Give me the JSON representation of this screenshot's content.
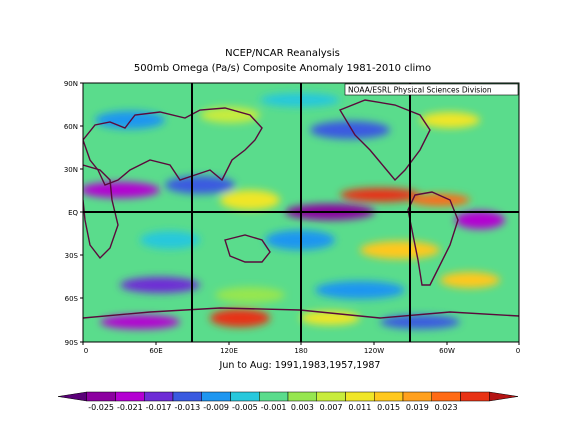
{
  "title_line1": "NCEP/NCAR Reanalysis",
  "title_line2": "500mb Omega (Pa/s) Composite Anomaly 1981-2010 climo",
  "credit": "NOAA/ESRL Physical Sciences Division",
  "period": "Jun to Aug: 1991,1983,1957,1987",
  "lat_ticks": [
    "90N",
    "60N",
    "30N",
    "EQ",
    "30S",
    "60S",
    "90S"
  ],
  "lon_ticks": [
    "0",
    "60E",
    "120E",
    "180",
    "120W",
    "60W",
    "0"
  ],
  "colorbar": {
    "labels": [
      "-0.025",
      "-0.021",
      "-0.017",
      "-0.013",
      "-0.009",
      "-0.005",
      "-0.001",
      "0.003",
      "0.007",
      "0.011",
      "0.015",
      "0.019",
      "0.023"
    ],
    "colors": [
      "#5a0078",
      "#8c00a0",
      "#b400d2",
      "#6e2cd6",
      "#3a5ae0",
      "#1e96f0",
      "#28c8dc",
      "#5adc8c",
      "#96e650",
      "#c8ec3c",
      "#f0e628",
      "#ffc81e",
      "#ffa01e",
      "#ff6a14",
      "#e83214",
      "#b41414"
    ]
  }
}
